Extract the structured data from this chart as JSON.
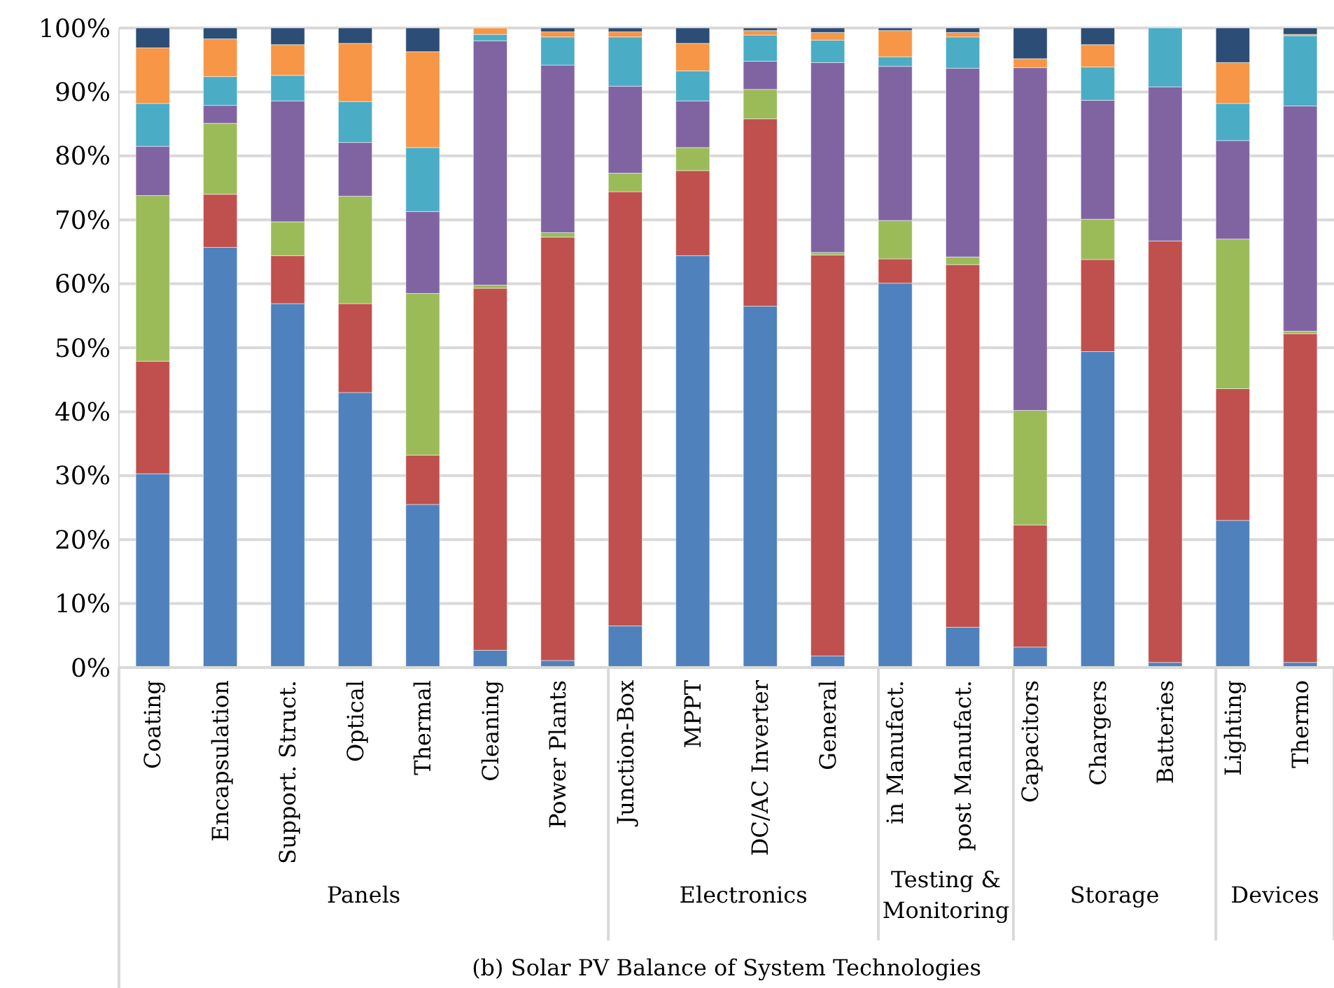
{
  "chart_data": {
    "type": "bar",
    "stacked": true,
    "xlabel": "(b) Solar PV Balance of System Technologies",
    "categories": [
      "Coating",
      "Encapsulation",
      "Support. Struct.",
      "Optical",
      "Thermal",
      "Cleaning",
      "Power Plants",
      "Junction-Box",
      "MPPT",
      "DC/AC Inverter",
      "General",
      "in Manufact.",
      "post Manufact.",
      "Capacitors",
      "Chargers",
      "Batteries",
      "Lighting",
      "Thermo"
    ],
    "series": [
      {
        "color": "#4f81bd",
        "values": [
          30.3,
          65.7,
          56.9,
          43.0,
          25.5,
          2.7,
          1.1,
          6.5,
          64.4,
          56.5,
          1.8,
          60.1,
          6.3,
          3.2,
          49.4,
          0.8,
          23.0,
          0.8
        ]
      },
      {
        "color": "#c0504d",
        "values": [
          17.6,
          8.3,
          7.5,
          13.9,
          7.7,
          56.6,
          66.2,
          67.9,
          13.3,
          29.3,
          62.7,
          3.8,
          56.7,
          19.1,
          14.4,
          65.9,
          20.6,
          51.4
        ]
      },
      {
        "color": "#9bbb59",
        "values": [
          25.9,
          11.1,
          5.3,
          16.8,
          25.3,
          0.5,
          0.7,
          2.9,
          3.6,
          4.6,
          0.4,
          6.0,
          1.2,
          17.9,
          6.3,
          0,
          23.4,
          0.4
        ]
      },
      {
        "color": "#8064a2",
        "values": [
          7.7,
          2.8,
          18.9,
          8.4,
          12.8,
          38.2,
          26.2,
          13.6,
          7.3,
          4.4,
          29.7,
          24.1,
          29.5,
          53.6,
          18.6,
          24.1,
          15.4,
          35.2
        ]
      },
      {
        "color": "#4bacc6",
        "values": [
          6.7,
          4.5,
          4.0,
          6.4,
          10.0,
          1.0,
          4.4,
          7.7,
          4.7,
          4.1,
          3.5,
          1.5,
          4.9,
          0,
          5.2,
          9.2,
          5.8,
          11.0
        ]
      },
      {
        "color": "#f79646",
        "values": [
          8.7,
          5.9,
          4.8,
          9.1,
          15.0,
          1.0,
          0.8,
          0.8,
          4.3,
          0.7,
          1.2,
          4.1,
          0.7,
          1.4,
          3.5,
          0,
          6.4,
          0.2
        ]
      },
      {
        "color": "#2c4d75",
        "values": [
          3.1,
          1.7,
          2.6,
          2.4,
          3.7,
          0,
          0.6,
          0.6,
          2.4,
          0.4,
          0.7,
          0.4,
          0.7,
          4.8,
          2.6,
          0,
          5.4,
          1.0
        ]
      }
    ],
    "ylim": [
      0,
      100
    ],
    "yticks": [
      {
        "value": 0,
        "label": "0%"
      },
      {
        "value": 10,
        "label": "10%"
      },
      {
        "value": 20,
        "label": "20%"
      },
      {
        "value": 30,
        "label": "30%"
      },
      {
        "value": 40,
        "label": "40%"
      },
      {
        "value": 50,
        "label": "50%"
      },
      {
        "value": 60,
        "label": "60%"
      },
      {
        "value": 70,
        "label": "70%"
      },
      {
        "value": 80,
        "label": "80%"
      },
      {
        "value": 90,
        "label": "90%"
      },
      {
        "value": 100,
        "label": "100%"
      }
    ],
    "grid": "y",
    "annotations": [
      "Panels",
      "Electronics",
      "Testing & Monitoring",
      "Storage",
      "Devices"
    ]
  }
}
